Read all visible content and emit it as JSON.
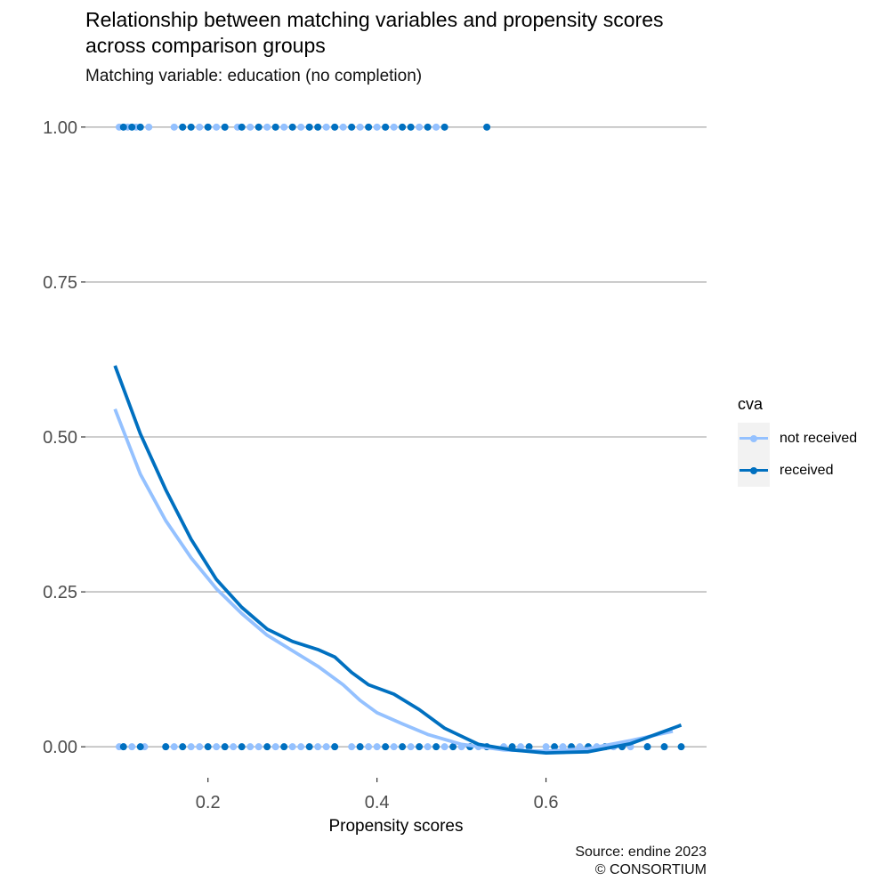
{
  "title_lines": [
    "Relationship between matching variables and propensity scores",
    "across comparison groups"
  ],
  "subtitle": "Matching variable: education (no completion)",
  "caption_lines": [
    "Source: endine 2023",
    "© CONSORTIUM"
  ],
  "chart_data": {
    "type": "scatter",
    "xlabel": "Propensity scores",
    "ylabel": "",
    "xlim": [
      0.055,
      0.79
    ],
    "ylim": [
      -0.05,
      1.05
    ],
    "x_ticks": [
      0.2,
      0.4,
      0.6
    ],
    "x_tick_labels": [
      "0.2",
      "0.4",
      "0.6"
    ],
    "y_ticks": [
      0,
      0.25,
      0.5,
      0.75,
      1
    ],
    "y_tick_labels": [
      "0.00",
      "0.25",
      "0.50",
      "0.75",
      "1.00"
    ],
    "grid": "horizontal major only",
    "legend": {
      "title": "cva",
      "position": "right"
    },
    "series": [
      {
        "name": "not received",
        "color": "#94c1ff",
        "points_y1": [
          0.095,
          0.105,
          0.115,
          0.13,
          0.16,
          0.17,
          0.19,
          0.2,
          0.21,
          0.22,
          0.235,
          0.25,
          0.27,
          0.29,
          0.31,
          0.32,
          0.34,
          0.36,
          0.38,
          0.4,
          0.41,
          0.42,
          0.45,
          0.47
        ],
        "points_y0": [
          0.095,
          0.1,
          0.11,
          0.125,
          0.15,
          0.16,
          0.18,
          0.19,
          0.21,
          0.23,
          0.25,
          0.26,
          0.28,
          0.3,
          0.31,
          0.33,
          0.34,
          0.35,
          0.37,
          0.38,
          0.39,
          0.4,
          0.42,
          0.44,
          0.46,
          0.48,
          0.5,
          0.52,
          0.55,
          0.57,
          0.6,
          0.62,
          0.64,
          0.66,
          0.68,
          0.7,
          0.72,
          0.74
        ],
        "smooth": [
          [
            0.09,
            0.545
          ],
          [
            0.12,
            0.44
          ],
          [
            0.15,
            0.365
          ],
          [
            0.18,
            0.305
          ],
          [
            0.21,
            0.255
          ],
          [
            0.24,
            0.215
          ],
          [
            0.27,
            0.18
          ],
          [
            0.3,
            0.155
          ],
          [
            0.33,
            0.13
          ],
          [
            0.36,
            0.1
          ],
          [
            0.38,
            0.075
          ],
          [
            0.4,
            0.055
          ],
          [
            0.43,
            0.037
          ],
          [
            0.46,
            0.02
          ],
          [
            0.5,
            0.004
          ],
          [
            0.55,
            -0.005
          ],
          [
            0.6,
            -0.007
          ],
          [
            0.65,
            -0.003
          ],
          [
            0.7,
            0.01
          ],
          [
            0.75,
            0.025
          ]
        ]
      },
      {
        "name": "received",
        "color": "#0070c0",
        "points_y1": [
          0.1,
          0.11,
          0.12,
          0.17,
          0.18,
          0.2,
          0.22,
          0.24,
          0.26,
          0.28,
          0.3,
          0.32,
          0.33,
          0.35,
          0.37,
          0.39,
          0.41,
          0.43,
          0.44,
          0.46,
          0.48,
          0.53
        ],
        "points_y0": [
          0.1,
          0.12,
          0.15,
          0.17,
          0.2,
          0.22,
          0.24,
          0.27,
          0.29,
          0.32,
          0.35,
          0.38,
          0.41,
          0.43,
          0.45,
          0.47,
          0.49,
          0.51,
          0.53,
          0.56,
          0.58,
          0.61,
          0.63,
          0.65,
          0.67,
          0.69,
          0.72,
          0.74,
          0.76
        ],
        "smooth": [
          [
            0.09,
            0.615
          ],
          [
            0.12,
            0.505
          ],
          [
            0.15,
            0.415
          ],
          [
            0.18,
            0.335
          ],
          [
            0.21,
            0.27
          ],
          [
            0.24,
            0.225
          ],
          [
            0.27,
            0.19
          ],
          [
            0.3,
            0.17
          ],
          [
            0.33,
            0.157
          ],
          [
            0.35,
            0.145
          ],
          [
            0.37,
            0.12
          ],
          [
            0.39,
            0.1
          ],
          [
            0.42,
            0.085
          ],
          [
            0.45,
            0.06
          ],
          [
            0.48,
            0.03
          ],
          [
            0.52,
            0.004
          ],
          [
            0.56,
            -0.005
          ],
          [
            0.6,
            -0.01
          ],
          [
            0.65,
            -0.008
          ],
          [
            0.7,
            0.005
          ],
          [
            0.76,
            0.035
          ]
        ]
      }
    ]
  }
}
